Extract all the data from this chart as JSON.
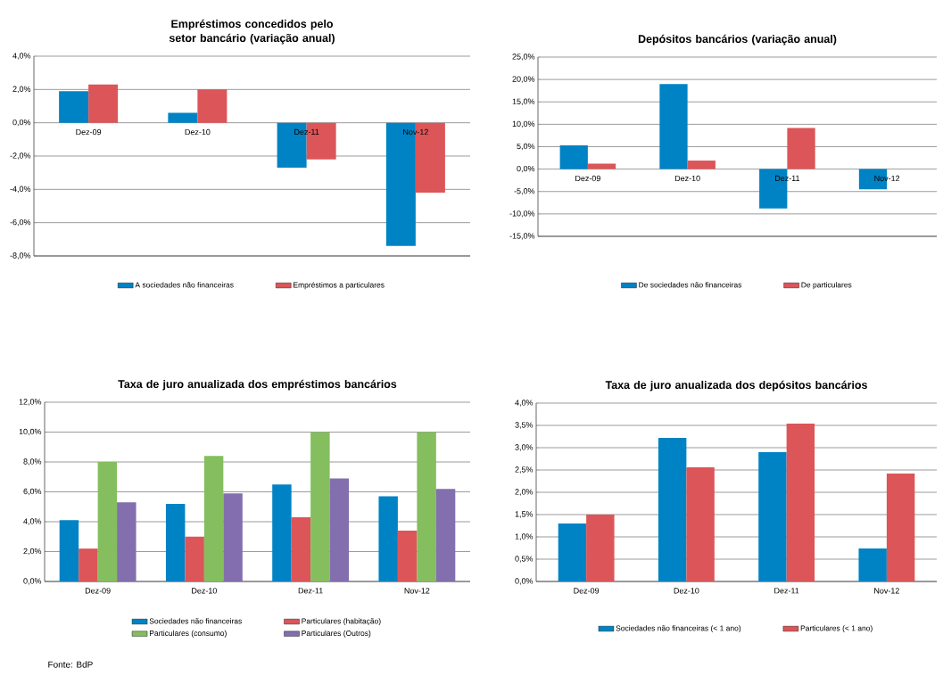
{
  "chart_data": [
    {
      "type": "bar",
      "title": "Empréstimos concedidos pelo setor bancário (variação anual)",
      "categories": [
        "Dez-09",
        "Dez-10",
        "Dez-11",
        "Nov-12"
      ],
      "series": [
        {
          "name": "A sociedades não financeiras",
          "color": "#0083c4",
          "values": [
            1.9,
            0.6,
            -2.7,
            -7.4
          ]
        },
        {
          "name": "Empréstimos a particulares",
          "color": "#dc5558",
          "values": [
            2.3,
            2.0,
            -2.2,
            -4.2
          ]
        }
      ],
      "ylim": [
        -8,
        4
      ],
      "yticks": [
        {
          "value": -8,
          "label": "-8,0%"
        },
        {
          "value": -6,
          "label": "-6,0%"
        },
        {
          "value": -4,
          "label": "-4,0%"
        },
        {
          "value": -2,
          "label": "-2,0%"
        },
        {
          "value": 0,
          "label": "0,0%"
        },
        {
          "value": 2,
          "label": "2,0%"
        },
        {
          "value": 4,
          "label": "4,0%"
        }
      ],
      "grid": "y",
      "legend": "bottom"
    },
    {
      "type": "bar",
      "title": "Depósitos bancários (variação anual)",
      "categories": [
        "Dez-09",
        "Dez-10",
        "Dez-11",
        "Nov-12"
      ],
      "series": [
        {
          "name": "De sociedades não financeiras",
          "color": "#0083c4",
          "values": [
            5.3,
            19.0,
            -8.8,
            -4.5
          ]
        },
        {
          "name": "De particulares",
          "color": "#dc5558",
          "values": [
            1.2,
            1.9,
            9.2,
            null
          ]
        }
      ],
      "ylim": [
        -15,
        25
      ],
      "yticks": [
        {
          "value": -15,
          "label": "-15,0%"
        },
        {
          "value": -10,
          "label": "-10,0%"
        },
        {
          "value": -5,
          "label": "-5,0%"
        },
        {
          "value": 0,
          "label": "0,0%"
        },
        {
          "value": 5,
          "label": "5,0%"
        },
        {
          "value": 10,
          "label": "10,0%"
        },
        {
          "value": 15,
          "label": "15,0%"
        },
        {
          "value": 20,
          "label": "20,0%"
        },
        {
          "value": 25,
          "label": "25,0%"
        }
      ],
      "grid": "y",
      "legend": "bottom"
    },
    {
      "type": "bar",
      "title": "Taxa de juro anualizada dos empréstimos bancários",
      "categories": [
        "Dez-09",
        "Dez-10",
        "Dez-11",
        "Nov-12"
      ],
      "series": [
        {
          "name": "Sociedades não financeiras",
          "color": "#0083c4",
          "values": [
            4.1,
            5.2,
            6.5,
            5.7
          ]
        },
        {
          "name": "Particulares (habitação)",
          "color": "#dc5558",
          "values": [
            2.2,
            3.0,
            4.3,
            3.4
          ]
        },
        {
          "name": "Particulares (consumo)",
          "color": "#84be5e",
          "values": [
            8.0,
            8.4,
            10.0,
            10.0
          ]
        },
        {
          "name": "Particulares (Outros)",
          "color": "#836eae",
          "values": [
            5.3,
            5.9,
            6.9,
            6.2
          ]
        }
      ],
      "ylim": [
        0,
        12
      ],
      "yticks": [
        {
          "value": 0,
          "label": "0,0%"
        },
        {
          "value": 2,
          "label": "2,0%"
        },
        {
          "value": 4,
          "label": "4,0%"
        },
        {
          "value": 6,
          "label": "6,0%"
        },
        {
          "value": 8,
          "label": "8,0%"
        },
        {
          "value": 10,
          "label": "10,0%"
        },
        {
          "value": 12,
          "label": "12,0%"
        }
      ],
      "grid": "y",
      "legend": "bottom",
      "annotations": [
        "Fonte:  BdP"
      ]
    },
    {
      "type": "bar",
      "title": "Taxa de juro anualizada dos depósitos bancários",
      "categories": [
        "Dez-09",
        "Dez-10",
        "Dez-11",
        "Nov-12"
      ],
      "series": [
        {
          "name": "Sociedades não financeiras (< 1 ano)",
          "color": "#0083c4",
          "values": [
            1.3,
            3.22,
            2.9,
            0.74
          ]
        },
        {
          "name": "Particulares (< 1 ano)",
          "color": "#dc5558",
          "values": [
            1.5,
            2.56,
            3.54,
            2.42
          ]
        }
      ],
      "ylim": [
        0,
        4
      ],
      "yticks": [
        {
          "value": 0,
          "label": "0,0%"
        },
        {
          "value": 0.5,
          "label": "0,5%"
        },
        {
          "value": 1,
          "label": "1,0%"
        },
        {
          "value": 1.5,
          "label": "1,5%"
        },
        {
          "value": 2,
          "label": "2,0%"
        },
        {
          "value": 2.5,
          "label": "2,5%"
        },
        {
          "value": 3,
          "label": "3,0%"
        },
        {
          "value": 3.5,
          "label": "3,5%"
        },
        {
          "value": 4,
          "label": "4,0%"
        }
      ],
      "grid": "y",
      "legend": "bottom"
    }
  ]
}
